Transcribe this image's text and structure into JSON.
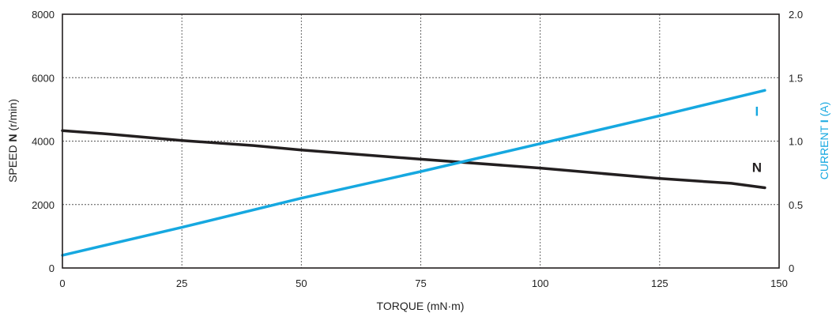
{
  "chart_data": {
    "type": "line",
    "xlabel": "TORQUE (mN·m)",
    "ylabel_left": {
      "prefix": "SPEED ",
      "symbol": "N",
      "suffix": " (r/min)"
    },
    "ylabel_right": {
      "prefix": "CURRENT ",
      "symbol": "I",
      "suffix": " (A)"
    },
    "xlim": [
      0,
      150
    ],
    "ylim_left": [
      0,
      8000
    ],
    "ylim_right": [
      0,
      2.0
    ],
    "x_ticks": [
      "0",
      "25",
      "50",
      "75",
      "100",
      "125",
      "150"
    ],
    "y_left_ticks": [
      "0",
      "2000",
      "4000",
      "6000",
      "8000"
    ],
    "y_right_ticks": [
      "0",
      "0.5",
      "1.0",
      "1.5",
      "2.0"
    ],
    "grid": true,
    "series": [
      {
        "name": "N",
        "axis": "left",
        "color": "#231f20",
        "x": [
          0,
          10,
          25,
          40,
          50,
          75,
          100,
          125,
          140,
          147
        ],
        "y": [
          4330,
          4220,
          4020,
          3860,
          3720,
          3430,
          3150,
          2820,
          2670,
          2530
        ]
      },
      {
        "name": "I",
        "axis": "right",
        "color": "#16a8e0",
        "x": [
          0,
          25,
          50,
          75,
          100,
          125,
          147
        ],
        "y": [
          0.1,
          0.32,
          0.55,
          0.76,
          0.98,
          1.2,
          1.4
        ]
      }
    ]
  }
}
